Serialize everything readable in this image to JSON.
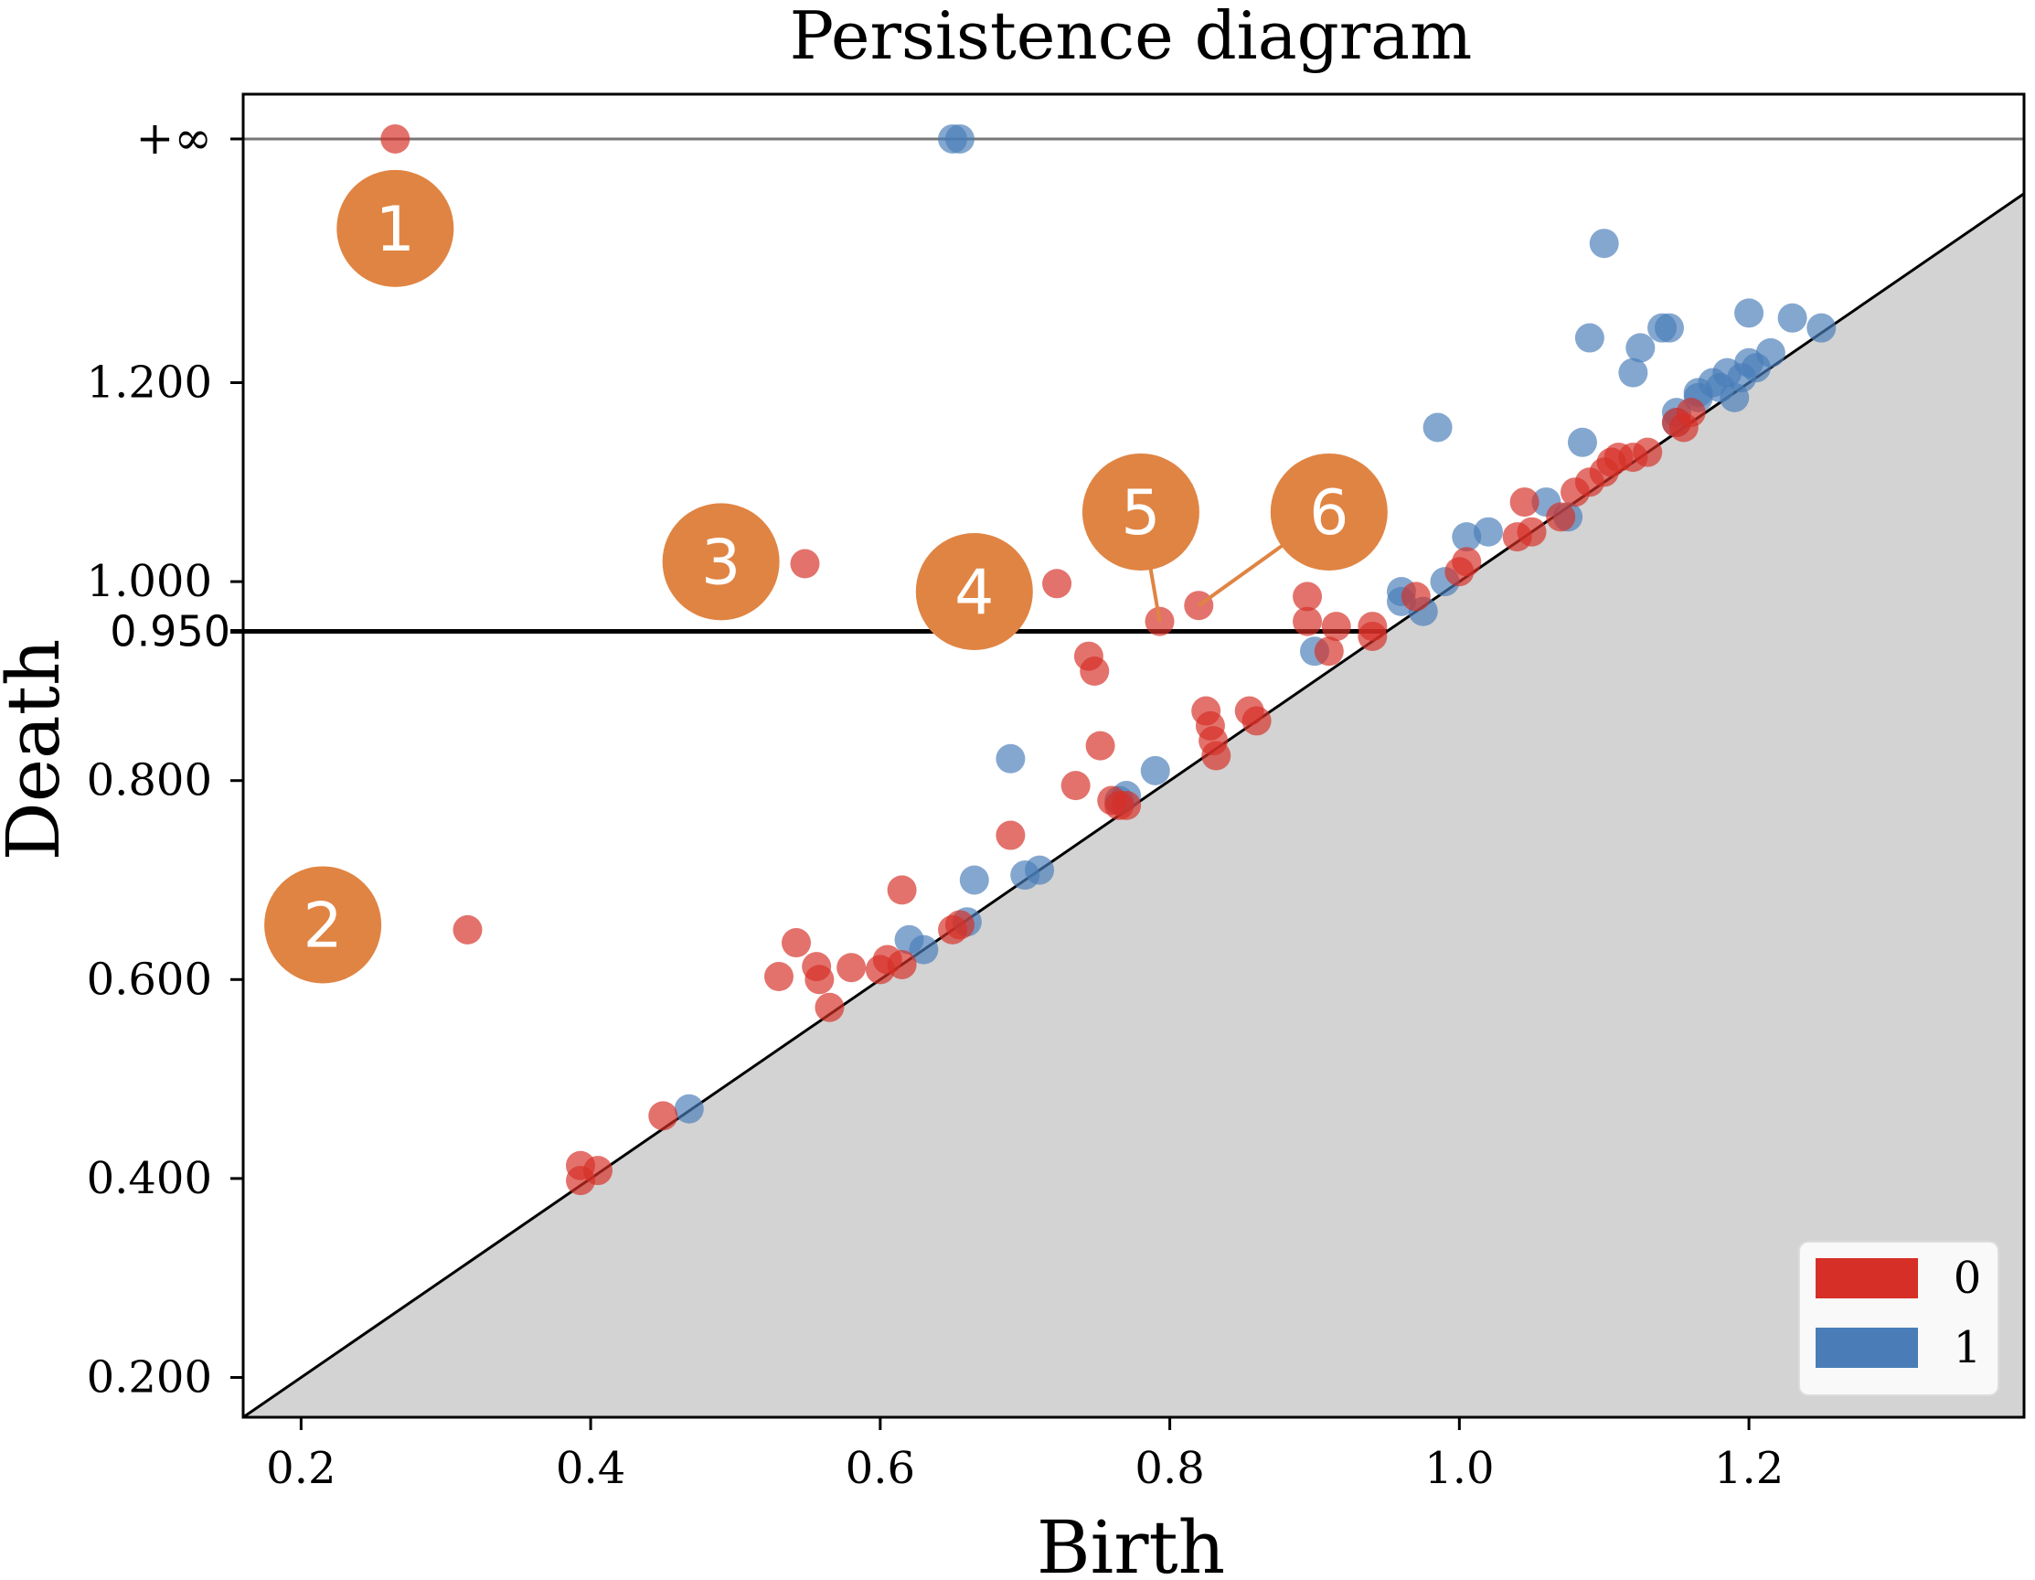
{
  "chart_data": {
    "type": "scatter",
    "title": "Persistence diagram",
    "xlabel": "Birth",
    "ylabel": "Death",
    "xlim": [
      0.16,
      1.39
    ],
    "ylim": [
      0.16,
      1.49
    ],
    "xticks": [
      0.2,
      0.4,
      0.6,
      0.8,
      1.0,
      1.2
    ],
    "xtick_labels": [
      "0.2",
      "0.4",
      "0.6",
      "0.8",
      "1.0",
      "1.2"
    ],
    "yticks": [
      0.2,
      0.4,
      0.6,
      0.8,
      1.0,
      1.2
    ],
    "ytick_labels": [
      "0.200",
      "0.400",
      "0.600",
      "0.800",
      "1.000",
      "1.200"
    ],
    "infinity_value": 1.445,
    "infinity_label": "+∞",
    "threshold": {
      "value": 0.95,
      "label": "0.950"
    },
    "legend": {
      "position": "lower-right",
      "entries": [
        "0",
        "1"
      ]
    },
    "series": [
      {
        "name": "0",
        "color": "#d62f27",
        "points": [
          [
            0.265,
            1.445
          ],
          [
            0.315,
            0.65
          ],
          [
            0.548,
            1.018
          ],
          [
            0.722,
            0.998
          ],
          [
            0.793,
            0.96
          ],
          [
            0.82,
            0.976
          ],
          [
            0.393,
            0.398
          ],
          [
            0.393,
            0.413
          ],
          [
            0.405,
            0.408
          ],
          [
            0.45,
            0.463
          ],
          [
            0.53,
            0.603
          ],
          [
            0.542,
            0.637
          ],
          [
            0.556,
            0.613
          ],
          [
            0.558,
            0.6
          ],
          [
            0.565,
            0.572
          ],
          [
            0.58,
            0.612
          ],
          [
            0.6,
            0.61
          ],
          [
            0.605,
            0.62
          ],
          [
            0.615,
            0.615
          ],
          [
            0.615,
            0.69
          ],
          [
            0.65,
            0.65
          ],
          [
            0.655,
            0.655
          ],
          [
            0.69,
            0.745
          ],
          [
            0.735,
            0.795
          ],
          [
            0.744,
            0.925
          ],
          [
            0.748,
            0.91
          ],
          [
            0.752,
            0.835
          ],
          [
            0.76,
            0.78
          ],
          [
            0.765,
            0.775
          ],
          [
            0.77,
            0.775
          ],
          [
            0.825,
            0.87
          ],
          [
            0.828,
            0.855
          ],
          [
            0.83,
            0.84
          ],
          [
            0.832,
            0.825
          ],
          [
            0.855,
            0.87
          ],
          [
            0.86,
            0.86
          ],
          [
            0.895,
            0.985
          ],
          [
            0.895,
            0.96
          ],
          [
            0.91,
            0.93
          ],
          [
            0.915,
            0.955
          ],
          [
            0.94,
            0.955
          ],
          [
            0.94,
            0.945
          ],
          [
            0.97,
            0.985
          ],
          [
            1.0,
            1.01
          ],
          [
            1.005,
            1.02
          ],
          [
            1.04,
            1.045
          ],
          [
            1.045,
            1.08
          ],
          [
            1.05,
            1.05
          ],
          [
            1.07,
            1.065
          ],
          [
            1.08,
            1.09
          ],
          [
            1.09,
            1.1
          ],
          [
            1.1,
            1.11
          ],
          [
            1.105,
            1.12
          ],
          [
            1.11,
            1.125
          ],
          [
            1.12,
            1.125
          ],
          [
            1.13,
            1.13
          ],
          [
            1.15,
            1.16
          ],
          [
            1.155,
            1.155
          ],
          [
            1.16,
            1.17
          ]
        ]
      },
      {
        "name": "1",
        "color": "#4a7db8",
        "points": [
          [
            0.65,
            1.445
          ],
          [
            0.655,
            1.445
          ],
          [
            0.468,
            0.47
          ],
          [
            0.62,
            0.64
          ],
          [
            0.63,
            0.63
          ],
          [
            0.66,
            0.658
          ],
          [
            0.665,
            0.7
          ],
          [
            0.69,
            0.822
          ],
          [
            0.7,
            0.705
          ],
          [
            0.71,
            0.71
          ],
          [
            0.765,
            0.78
          ],
          [
            0.77,
            0.785
          ],
          [
            0.79,
            0.81
          ],
          [
            0.9,
            0.93
          ],
          [
            0.96,
            0.98
          ],
          [
            0.96,
            0.99
          ],
          [
            0.975,
            0.97
          ],
          [
            0.99,
            1.0
          ],
          [
            0.985,
            1.155
          ],
          [
            1.005,
            1.045
          ],
          [
            1.02,
            1.05
          ],
          [
            1.06,
            1.08
          ],
          [
            1.075,
            1.065
          ],
          [
            1.085,
            1.14
          ],
          [
            1.1,
            1.34
          ],
          [
            1.09,
            1.245
          ],
          [
            1.12,
            1.21
          ],
          [
            1.125,
            1.235
          ],
          [
            1.14,
            1.255
          ],
          [
            1.145,
            1.255
          ],
          [
            1.15,
            1.17
          ],
          [
            1.15,
            1.16
          ],
          [
            1.165,
            1.19
          ],
          [
            1.175,
            1.2
          ],
          [
            1.18,
            1.195
          ],
          [
            1.185,
            1.21
          ],
          [
            1.195,
            1.205
          ],
          [
            1.2,
            1.22
          ],
          [
            1.205,
            1.215
          ],
          [
            1.2,
            1.27
          ],
          [
            1.23,
            1.265
          ],
          [
            1.25,
            1.255
          ],
          [
            1.165,
            1.185
          ],
          [
            1.19,
            1.185
          ],
          [
            1.215,
            1.23
          ]
        ]
      }
    ],
    "annotations": [
      {
        "label": "1",
        "x": 0.265,
        "y": 1.355
      },
      {
        "label": "2",
        "x": 0.215,
        "y": 0.655
      },
      {
        "label": "3",
        "x": 0.49,
        "y": 1.02
      },
      {
        "label": "4",
        "x": 0.665,
        "y": 0.99
      },
      {
        "label": "5",
        "x": 0.78,
        "y": 1.07,
        "target": [
          0.793,
          0.96
        ]
      },
      {
        "label": "6",
        "x": 0.91,
        "y": 1.07,
        "target": [
          0.82,
          0.976
        ]
      }
    ],
    "annotation_color": "#e08443"
  }
}
